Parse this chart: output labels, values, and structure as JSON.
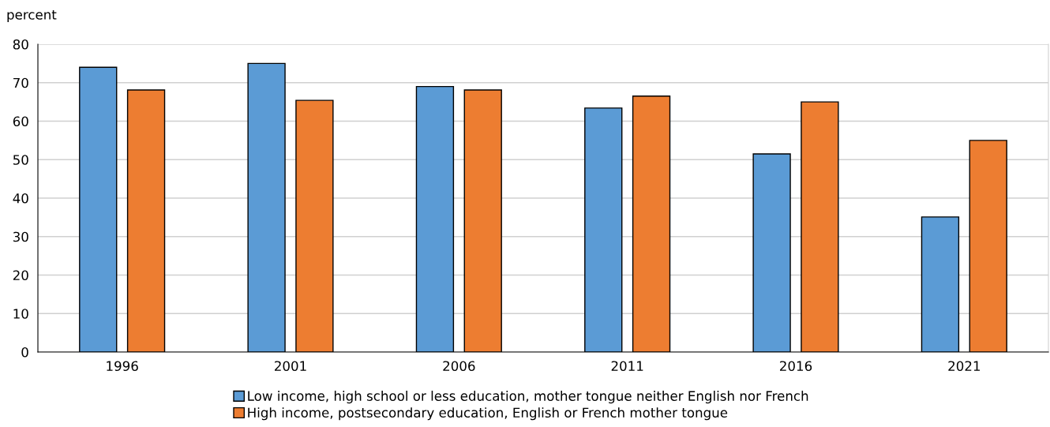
{
  "chart_data": {
    "type": "bar",
    "ylabel": "percent",
    "categories": [
      "1996",
      "2001",
      "2006",
      "2011",
      "2016",
      "2021"
    ],
    "series": [
      {
        "name": "Low income, high school or less education, mother tongue neither English nor French",
        "color": "#5b9bd5",
        "values": [
          74,
          75,
          69,
          63.4,
          51.5,
          35.1
        ]
      },
      {
        "name": "High income, postsecondary education, English or French mother tongue",
        "color": "#ed7d31",
        "values": [
          68.1,
          65.4,
          68.1,
          66.5,
          65,
          55
        ]
      }
    ],
    "ylim": [
      0,
      80
    ],
    "yticks": [
      0,
      10,
      20,
      30,
      40,
      50,
      60,
      70,
      80
    ],
    "grid": "y",
    "legend": "bottom"
  }
}
